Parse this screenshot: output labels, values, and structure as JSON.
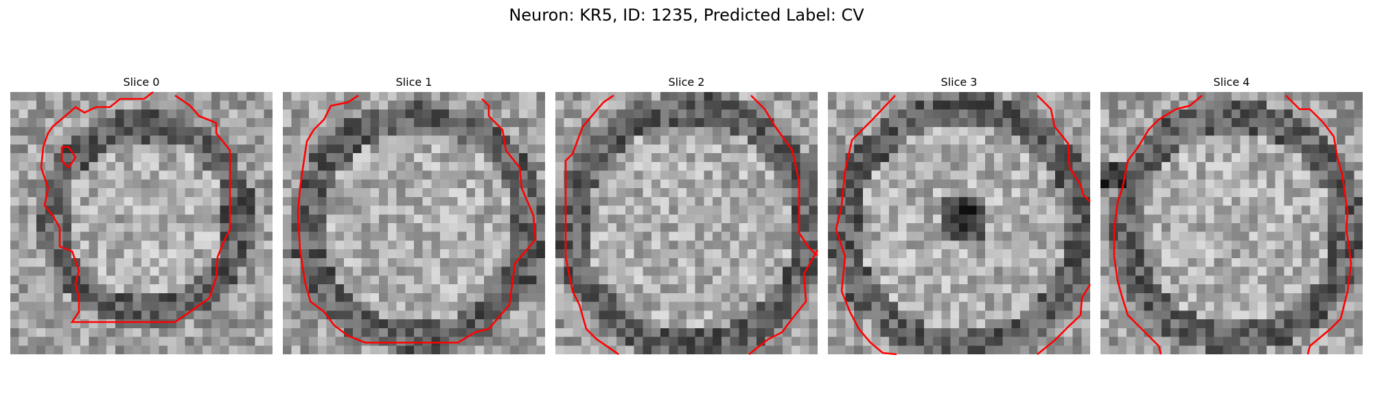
{
  "figure": {
    "title": "Neuron: KR5, ID: 1235, Predicted Label: CV"
  },
  "panels": [
    {
      "title": "Slice 0"
    },
    {
      "title": "Slice 1"
    },
    {
      "title": "Slice 2"
    },
    {
      "title": "Slice 3"
    },
    {
      "title": "Slice 4"
    }
  ],
  "colors": {
    "contour": "#ff0000",
    "background": "#ffffff"
  }
}
